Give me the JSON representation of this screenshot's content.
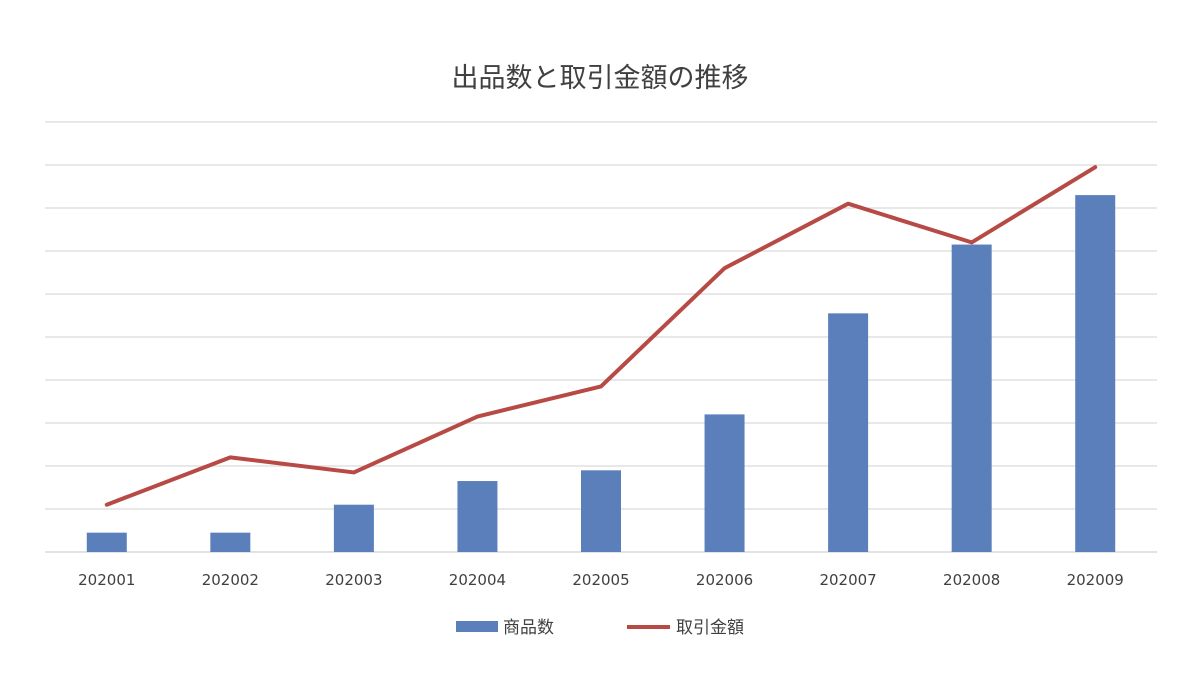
{
  "chart_data": {
    "type": "bar",
    "title": "出品数と取引金額の推移",
    "categories": [
      "202001",
      "202002",
      "202003",
      "202004",
      "202005",
      "202006",
      "202007",
      "202008",
      "202009"
    ],
    "series": [
      {
        "name": "商品数",
        "kind": "bar",
        "color": "#5a7fbb",
        "values": [
          4.5,
          4.5,
          11,
          16.5,
          19,
          32,
          55.5,
          71.5,
          83
        ]
      },
      {
        "name": "取引金額",
        "kind": "line",
        "color": "#b84a45",
        "values": [
          11,
          22,
          18.5,
          31.5,
          38.5,
          66,
          81,
          72,
          89.5
        ]
      }
    ],
    "ylim": [
      0,
      100
    ],
    "y_gridlines": 10,
    "y_tick_labels_shown": false,
    "grid": true,
    "legend": "bottom"
  }
}
